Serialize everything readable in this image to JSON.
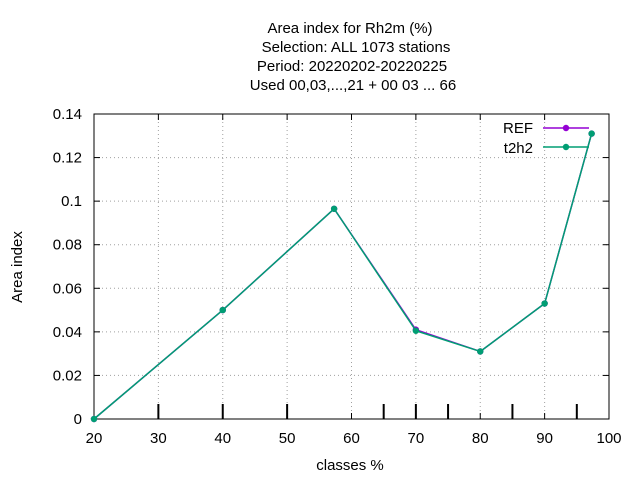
{
  "chart_data": {
    "type": "line",
    "title": [
      "Area index  for Rh2m (%)",
      "Selection: ALL   1073 stations",
      "Period: 20220202-20220225",
      "Used  00,03,...,21  + 00 03 ... 66"
    ],
    "xlabel": "classes %",
    "ylabel": "Area index",
    "xlim": [
      20,
      100
    ],
    "ylim": [
      0,
      0.14
    ],
    "xticks": [
      20,
      30,
      40,
      50,
      60,
      70,
      80,
      90,
      100
    ],
    "yticks": [
      0,
      0.02,
      0.04,
      0.06,
      0.08,
      0.1,
      0.12,
      0.14
    ],
    "ytick_labels": [
      "0",
      "0.02",
      "0.04",
      "0.06",
      "0.08",
      "0.1",
      "0.12",
      "0.14"
    ],
    "bottom_marks": [
      30,
      40,
      50,
      65,
      70,
      75,
      85,
      95
    ],
    "grid": true,
    "legend_position": "top-right",
    "series": [
      {
        "name": "REF",
        "color": "#9400d3",
        "x": [
          20,
          40,
          57.3,
          70,
          80,
          90,
          97.3
        ],
        "y": [
          0.0,
          0.05,
          0.0965,
          0.041,
          0.031,
          0.053,
          0.131
        ]
      },
      {
        "name": "t2h2",
        "color": "#009e73",
        "x": [
          20,
          40,
          57.3,
          70,
          80,
          90,
          97.3
        ],
        "y": [
          0.0,
          0.05,
          0.0965,
          0.0405,
          0.031,
          0.053,
          0.131
        ]
      }
    ]
  }
}
